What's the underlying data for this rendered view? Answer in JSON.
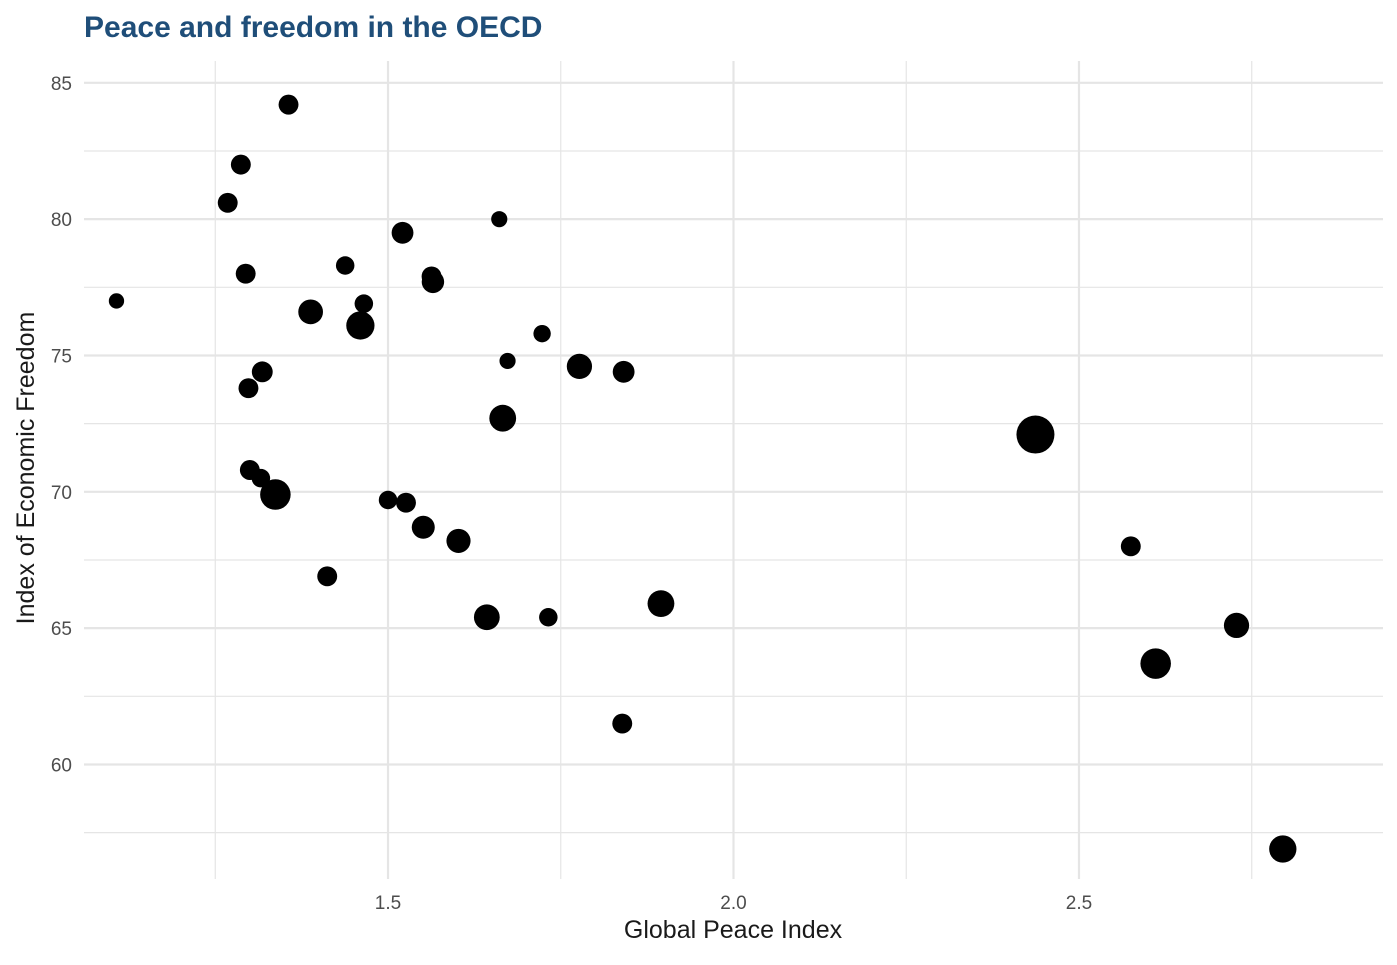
{
  "chart_data": {
    "type": "scatter",
    "title": "Peace and freedom in the OECD",
    "xlabel": "Global Peace Index",
    "ylabel": "Index of Economic Freedom",
    "xlim": [
      1.06,
      2.94
    ],
    "ylim": [
      55.8,
      85.8
    ],
    "x_ticks": [
      1.5,
      2.0,
      2.5
    ],
    "x_tick_labels": [
      "1.5",
      "2.0",
      "2.5"
    ],
    "x_minor_ticks": [
      1.25,
      1.75,
      2.25,
      2.75
    ],
    "y_ticks": [
      60,
      65,
      70,
      75,
      80,
      85
    ],
    "y_tick_labels": [
      "60",
      "65",
      "70",
      "75",
      "80",
      "85"
    ],
    "y_minor_ticks": [
      57.5,
      62.5,
      67.5,
      72.5,
      77.5,
      82.5
    ],
    "grid": true,
    "legend": "none",
    "point_color": "#000000",
    "grid_color": "#e5e5e5",
    "title_color": "#1f4e79",
    "size_variable_note_range": [
      0.1,
      1.0
    ],
    "points": [
      {
        "x": 1.107,
        "y": 77.0,
        "size": 0.1
      },
      {
        "x": 1.268,
        "y": 80.6,
        "size": 0.22
      },
      {
        "x": 1.287,
        "y": 82.0,
        "size": 0.22
      },
      {
        "x": 1.294,
        "y": 78.0,
        "size": 0.22
      },
      {
        "x": 1.298,
        "y": 73.8,
        "size": 0.22
      },
      {
        "x": 1.3,
        "y": 70.8,
        "size": 0.22
      },
      {
        "x": 1.316,
        "y": 70.5,
        "size": 0.18
      },
      {
        "x": 1.318,
        "y": 74.4,
        "size": 0.25
      },
      {
        "x": 1.337,
        "y": 69.9,
        "size": 0.62
      },
      {
        "x": 1.356,
        "y": 84.2,
        "size": 0.22
      },
      {
        "x": 1.388,
        "y": 76.6,
        "size": 0.38
      },
      {
        "x": 1.412,
        "y": 66.9,
        "size": 0.22
      },
      {
        "x": 1.438,
        "y": 78.3,
        "size": 0.18
      },
      {
        "x": 1.46,
        "y": 76.1,
        "size": 0.52
      },
      {
        "x": 1.465,
        "y": 76.9,
        "size": 0.18
      },
      {
        "x": 1.5,
        "y": 69.7,
        "size": 0.18
      },
      {
        "x": 1.521,
        "y": 79.5,
        "size": 0.28
      },
      {
        "x": 1.526,
        "y": 69.6,
        "size": 0.22
      },
      {
        "x": 1.551,
        "y": 68.7,
        "size": 0.32
      },
      {
        "x": 1.563,
        "y": 77.9,
        "size": 0.22
      },
      {
        "x": 1.565,
        "y": 77.7,
        "size": 0.3
      },
      {
        "x": 1.602,
        "y": 68.2,
        "size": 0.36
      },
      {
        "x": 1.643,
        "y": 65.4,
        "size": 0.42
      },
      {
        "x": 1.661,
        "y": 80.0,
        "size": 0.12
      },
      {
        "x": 1.666,
        "y": 72.7,
        "size": 0.46
      },
      {
        "x": 1.673,
        "y": 74.8,
        "size": 0.12
      },
      {
        "x": 1.723,
        "y": 75.8,
        "size": 0.15
      },
      {
        "x": 1.732,
        "y": 65.4,
        "size": 0.18
      },
      {
        "x": 1.777,
        "y": 74.6,
        "size": 0.4
      },
      {
        "x": 1.839,
        "y": 61.5,
        "size": 0.22
      },
      {
        "x": 1.841,
        "y": 74.4,
        "size": 0.28
      },
      {
        "x": 1.895,
        "y": 65.9,
        "size": 0.46
      },
      {
        "x": 2.437,
        "y": 72.1,
        "size": 1.0
      },
      {
        "x": 2.575,
        "y": 68.0,
        "size": 0.22
      },
      {
        "x": 2.611,
        "y": 63.7,
        "size": 0.62
      },
      {
        "x": 2.728,
        "y": 65.1,
        "size": 0.4
      },
      {
        "x": 2.795,
        "y": 56.9,
        "size": 0.48
      }
    ]
  }
}
